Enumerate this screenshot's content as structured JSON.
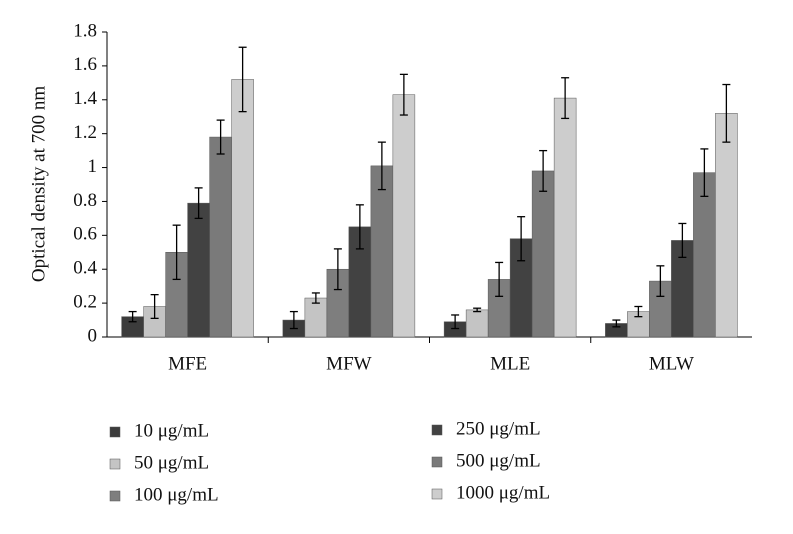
{
  "chart_data": {
    "type": "bar",
    "y_label": "Optical density at 700 nm",
    "categories": [
      "MFE",
      "MFW",
      "MLE",
      "MLW"
    ],
    "series": [
      {
        "name": "10 μg/mL",
        "color": "#3c3c3c",
        "values": [
          0.12,
          0.1,
          0.09,
          0.08
        ],
        "errors": [
          0.03,
          0.05,
          0.04,
          0.02
        ]
      },
      {
        "name": "50 μg/mL",
        "color": "#c4c4c4",
        "values": [
          0.18,
          0.23,
          0.16,
          0.15
        ],
        "errors": [
          0.07,
          0.03,
          0.01,
          0.03
        ]
      },
      {
        "name": "100 μg/mL",
        "color": "#7e7e7e",
        "values": [
          0.5,
          0.4,
          0.34,
          0.33
        ],
        "errors": [
          0.16,
          0.12,
          0.1,
          0.09
        ]
      },
      {
        "name": "250 μg/mL",
        "color": "#424242",
        "values": [
          0.79,
          0.65,
          0.58,
          0.57
        ],
        "errors": [
          0.09,
          0.13,
          0.13,
          0.1
        ]
      },
      {
        "name": "500 μg/mL",
        "color": "#7a7a7a",
        "values": [
          1.18,
          1.01,
          0.98,
          0.97
        ],
        "errors": [
          0.1,
          0.14,
          0.12,
          0.14
        ]
      },
      {
        "name": "1000 μg/mL",
        "color": "#cdcdcd",
        "values": [
          1.52,
          1.43,
          1.41,
          1.32
        ],
        "errors": [
          0.19,
          0.12,
          0.12,
          0.17
        ]
      }
    ],
    "ylim": [
      0,
      1.8
    ],
    "yticks": [
      0,
      0.2,
      0.4,
      0.6,
      0.8,
      1,
      1.2,
      1.4,
      1.6,
      1.8
    ],
    "grid": false
  }
}
